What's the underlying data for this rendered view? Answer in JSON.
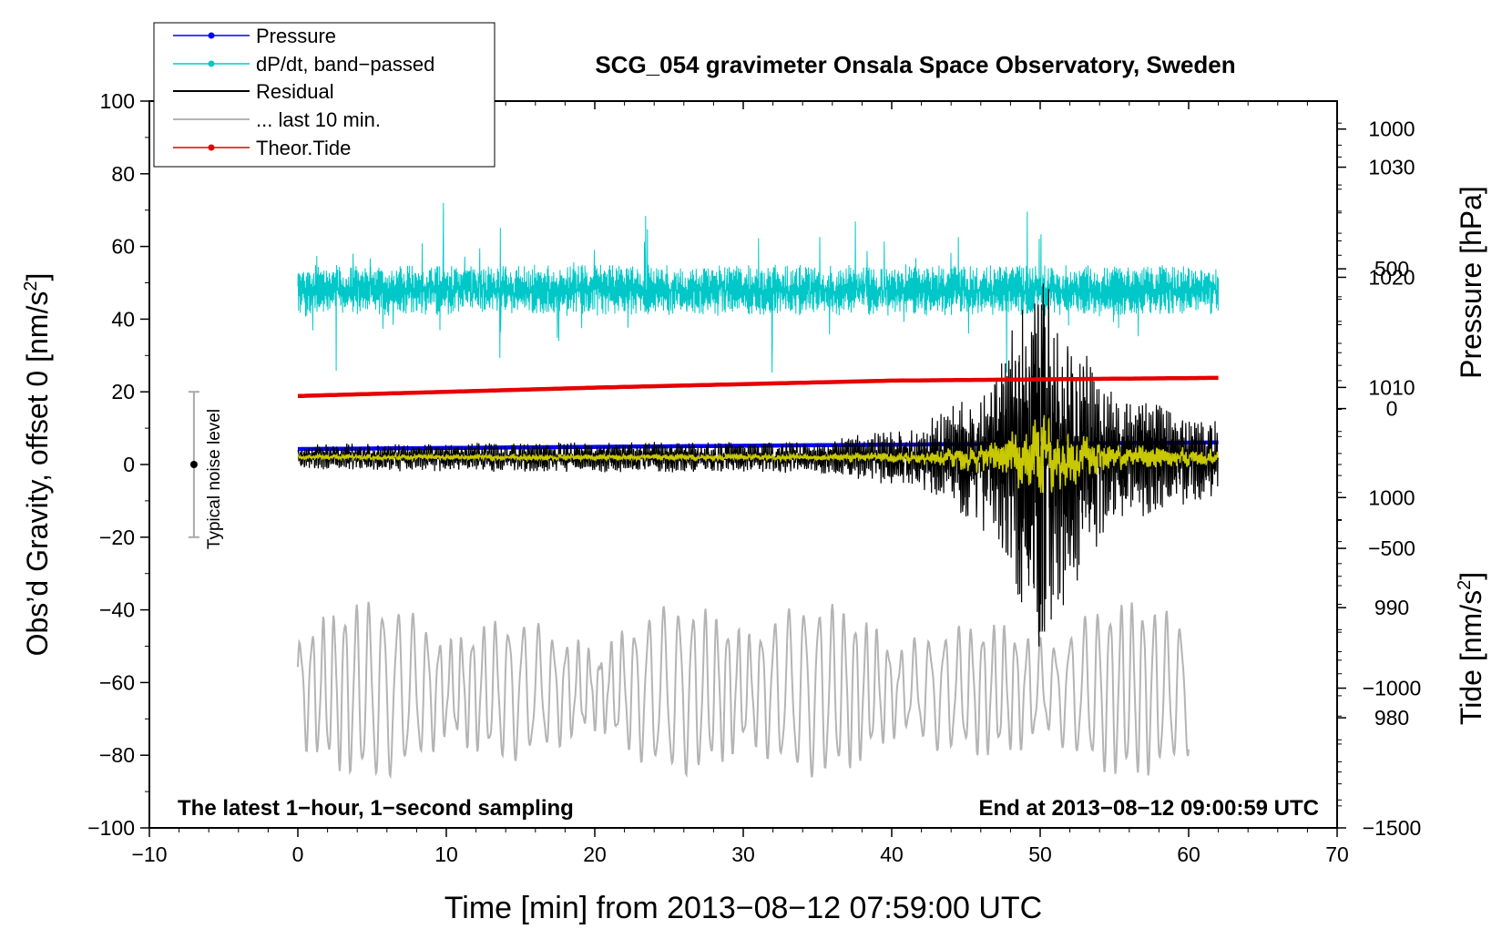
{
  "chart_data": {
    "type": "line",
    "title": "SCG_054 gravimeter Onsala Space Observatory, Sweden",
    "xlabel": "Time [min] from 2013−08−12 07:59:00 UTC",
    "ylabel_left_prefix": "Obs’d Gravity, offset 0 [nm/s",
    "ylabel_left_sup": "2",
    "ylabel_left_suffix": "]",
    "ylabel_right_pressure": "Pressure [hPa]",
    "ylabel_right_tide_prefix": "Tide [nm/s",
    "ylabel_right_tide_sup": "2",
    "ylabel_right_tide_suffix": "]",
    "xlim": [
      -10,
      70
    ],
    "ylim": [
      -100,
      100
    ],
    "x_ticks": [
      -10,
      0,
      10,
      20,
      30,
      40,
      50,
      60,
      70
    ],
    "x_tick_labels": [
      "−10",
      "0",
      "10",
      "20",
      "30",
      "40",
      "50",
      "60",
      "70"
    ],
    "y_ticks": [
      -100,
      -80,
      -60,
      -40,
      -20,
      0,
      20,
      40,
      60,
      80,
      100
    ],
    "y_tick_labels": [
      "−100",
      "−80",
      "−60",
      "−40",
      "−20",
      "0",
      "20",
      "40",
      "60",
      "80",
      "100"
    ],
    "pressure_axis": {
      "ticks": [
        980,
        990,
        1000,
        1010,
        1020,
        1030
      ],
      "tick_labels": [
        "980",
        "990",
        "1000",
        "1010",
        "1020",
        "1030"
      ],
      "range": [
        970,
        1036
      ]
    },
    "tide_axis": {
      "ticks": [
        -1500,
        -1000,
        -500,
        0,
        500,
        1000
      ],
      "tick_labels": [
        "−1500",
        "−1000",
        "−500",
        "0",
        "500",
        "1000"
      ],
      "range": [
        -1500,
        1100
      ]
    },
    "series": [
      {
        "name": "Pressure",
        "color": "#0000ff",
        "unit": "hPa",
        "x": [
          0,
          10,
          20,
          30,
          40,
          50,
          62
        ],
        "values": [
          1004.4,
          1004.5,
          1004.6,
          1004.7,
          1004.8,
          1004.9,
          1005.0
        ]
      },
      {
        "name": "dP/dt, band−passed",
        "color": "#00c8c8",
        "unit": "nm/s2",
        "baseline": 48,
        "amplitude": 6,
        "x": [
          0,
          62
        ]
      },
      {
        "name": "Residual",
        "color": "#000000",
        "unit": "nm/s2",
        "baseline": 2,
        "envelope_x": [
          0,
          35,
          42,
          47,
          50,
          52,
          55,
          62
        ],
        "envelope_amp": [
          2.5,
          3,
          6,
          15,
          38,
          25,
          12,
          8
        ]
      },
      {
        "name": "... last 10 min.",
        "color": "#b4b4b4",
        "unit": "nm/s2",
        "baseline": -62,
        "x": [
          0,
          60
        ]
      },
      {
        "name": "Theor.Tide",
        "color": "#e60000",
        "unit": "nm/s2",
        "x": [
          0,
          20,
          40,
          62
        ],
        "values": [
          45,
          75,
          100,
          110
        ]
      }
    ],
    "legend": [
      "Pressure",
      "dP/dt, band−passed",
      "Residual",
      "... last 10 min.",
      "Theor.Tide"
    ],
    "legend_position": "top-left",
    "annotations": {
      "noise_label": "Typical noise level",
      "noise_bar": [
        -20,
        20
      ],
      "noise_x": -7,
      "bottom_left": "The latest 1−hour, 1−second sampling",
      "bottom_right": "End at 2013−08−12 09:00:59 UTC"
    }
  }
}
